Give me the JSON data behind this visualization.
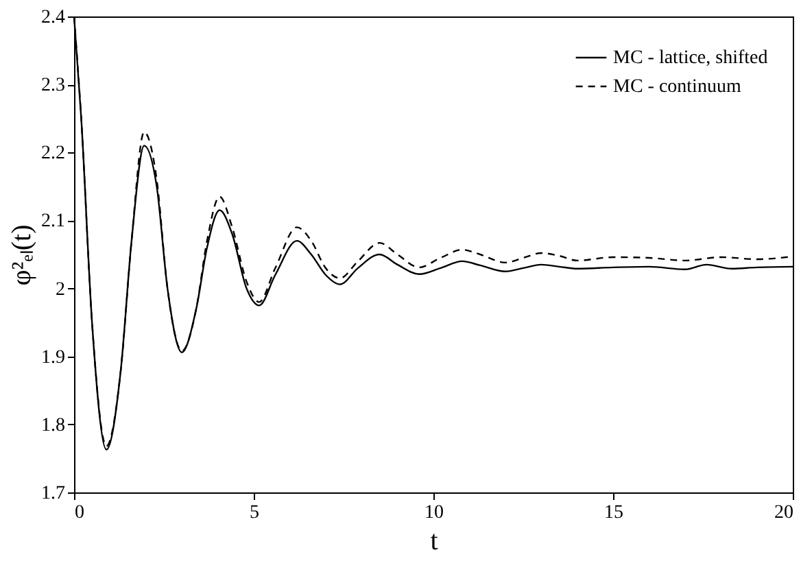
{
  "chart_data": {
    "type": "line",
    "xlabel": "t",
    "ylabel": "φ²ₑₗ(t)",
    "xlim": [
      0,
      20
    ],
    "xticks": [
      0,
      5,
      10,
      15,
      20
    ],
    "ylim": [
      1.7,
      2.4
    ],
    "yticks": [
      1.7,
      1.8,
      1.9,
      {
        "value": 2,
        "label": "2"
      },
      2.1,
      2.2,
      2.3,
      2.4
    ],
    "grid": false,
    "legend": "top right",
    "marker": "none",
    "series": [
      {
        "name": "MC - lattice, shifted",
        "color": "#000000",
        "line_style": "solid",
        "x": [
          0,
          0.2,
          0.5,
          0.9,
          1.3,
          1.6,
          1.95,
          2.3,
          2.6,
          3.0,
          3.4,
          3.7,
          4.05,
          4.4,
          4.8,
          5.15,
          5.6,
          6.2,
          6.6,
          7.0,
          7.4,
          7.9,
          8.5,
          9.0,
          9.6,
          10.2,
          10.8,
          11.3,
          12,
          12.5,
          13,
          13.5,
          14,
          15,
          16,
          17,
          17.6,
          18.3,
          19,
          20
        ],
        "values": [
          2.4,
          2.25,
          1.95,
          1.763,
          1.88,
          2.07,
          2.21,
          2.15,
          2.0,
          1.906,
          1.97,
          2.06,
          2.115,
          2.08,
          2.0,
          1.975,
          2.02,
          2.07,
          2.05,
          2.02,
          2.006,
          2.03,
          2.05,
          2.035,
          2.021,
          2.03,
          2.04,
          2.034,
          2.025,
          2.03,
          2.035,
          2.032,
          2.029,
          2.031,
          2.032,
          2.028,
          2.035,
          2.029,
          2.031,
          2.032
        ]
      },
      {
        "name": "MC - continuum",
        "color": "#000000",
        "line_style": "dashed",
        "x": [
          0,
          0.2,
          0.5,
          0.9,
          1.3,
          1.6,
          1.95,
          2.3,
          2.6,
          3.0,
          3.4,
          3.7,
          4.05,
          4.4,
          4.8,
          5.15,
          5.6,
          6.2,
          6.6,
          7.0,
          7.4,
          7.9,
          8.5,
          9.0,
          9.6,
          10.2,
          10.8,
          11.3,
          12,
          12.5,
          13,
          13.5,
          14,
          15,
          16,
          17,
          18,
          19,
          20
        ],
        "values": [
          2.4,
          2.25,
          1.95,
          1.768,
          1.88,
          2.07,
          2.23,
          2.16,
          2.0,
          1.908,
          1.97,
          2.07,
          2.135,
          2.09,
          2.01,
          1.98,
          2.03,
          2.09,
          2.07,
          2.03,
          2.015,
          2.04,
          2.067,
          2.05,
          2.031,
          2.045,
          2.057,
          2.05,
          2.038,
          2.045,
          2.052,
          2.048,
          2.041,
          2.046,
          2.045,
          2.041,
          2.046,
          2.043,
          2.047
        ]
      }
    ]
  }
}
